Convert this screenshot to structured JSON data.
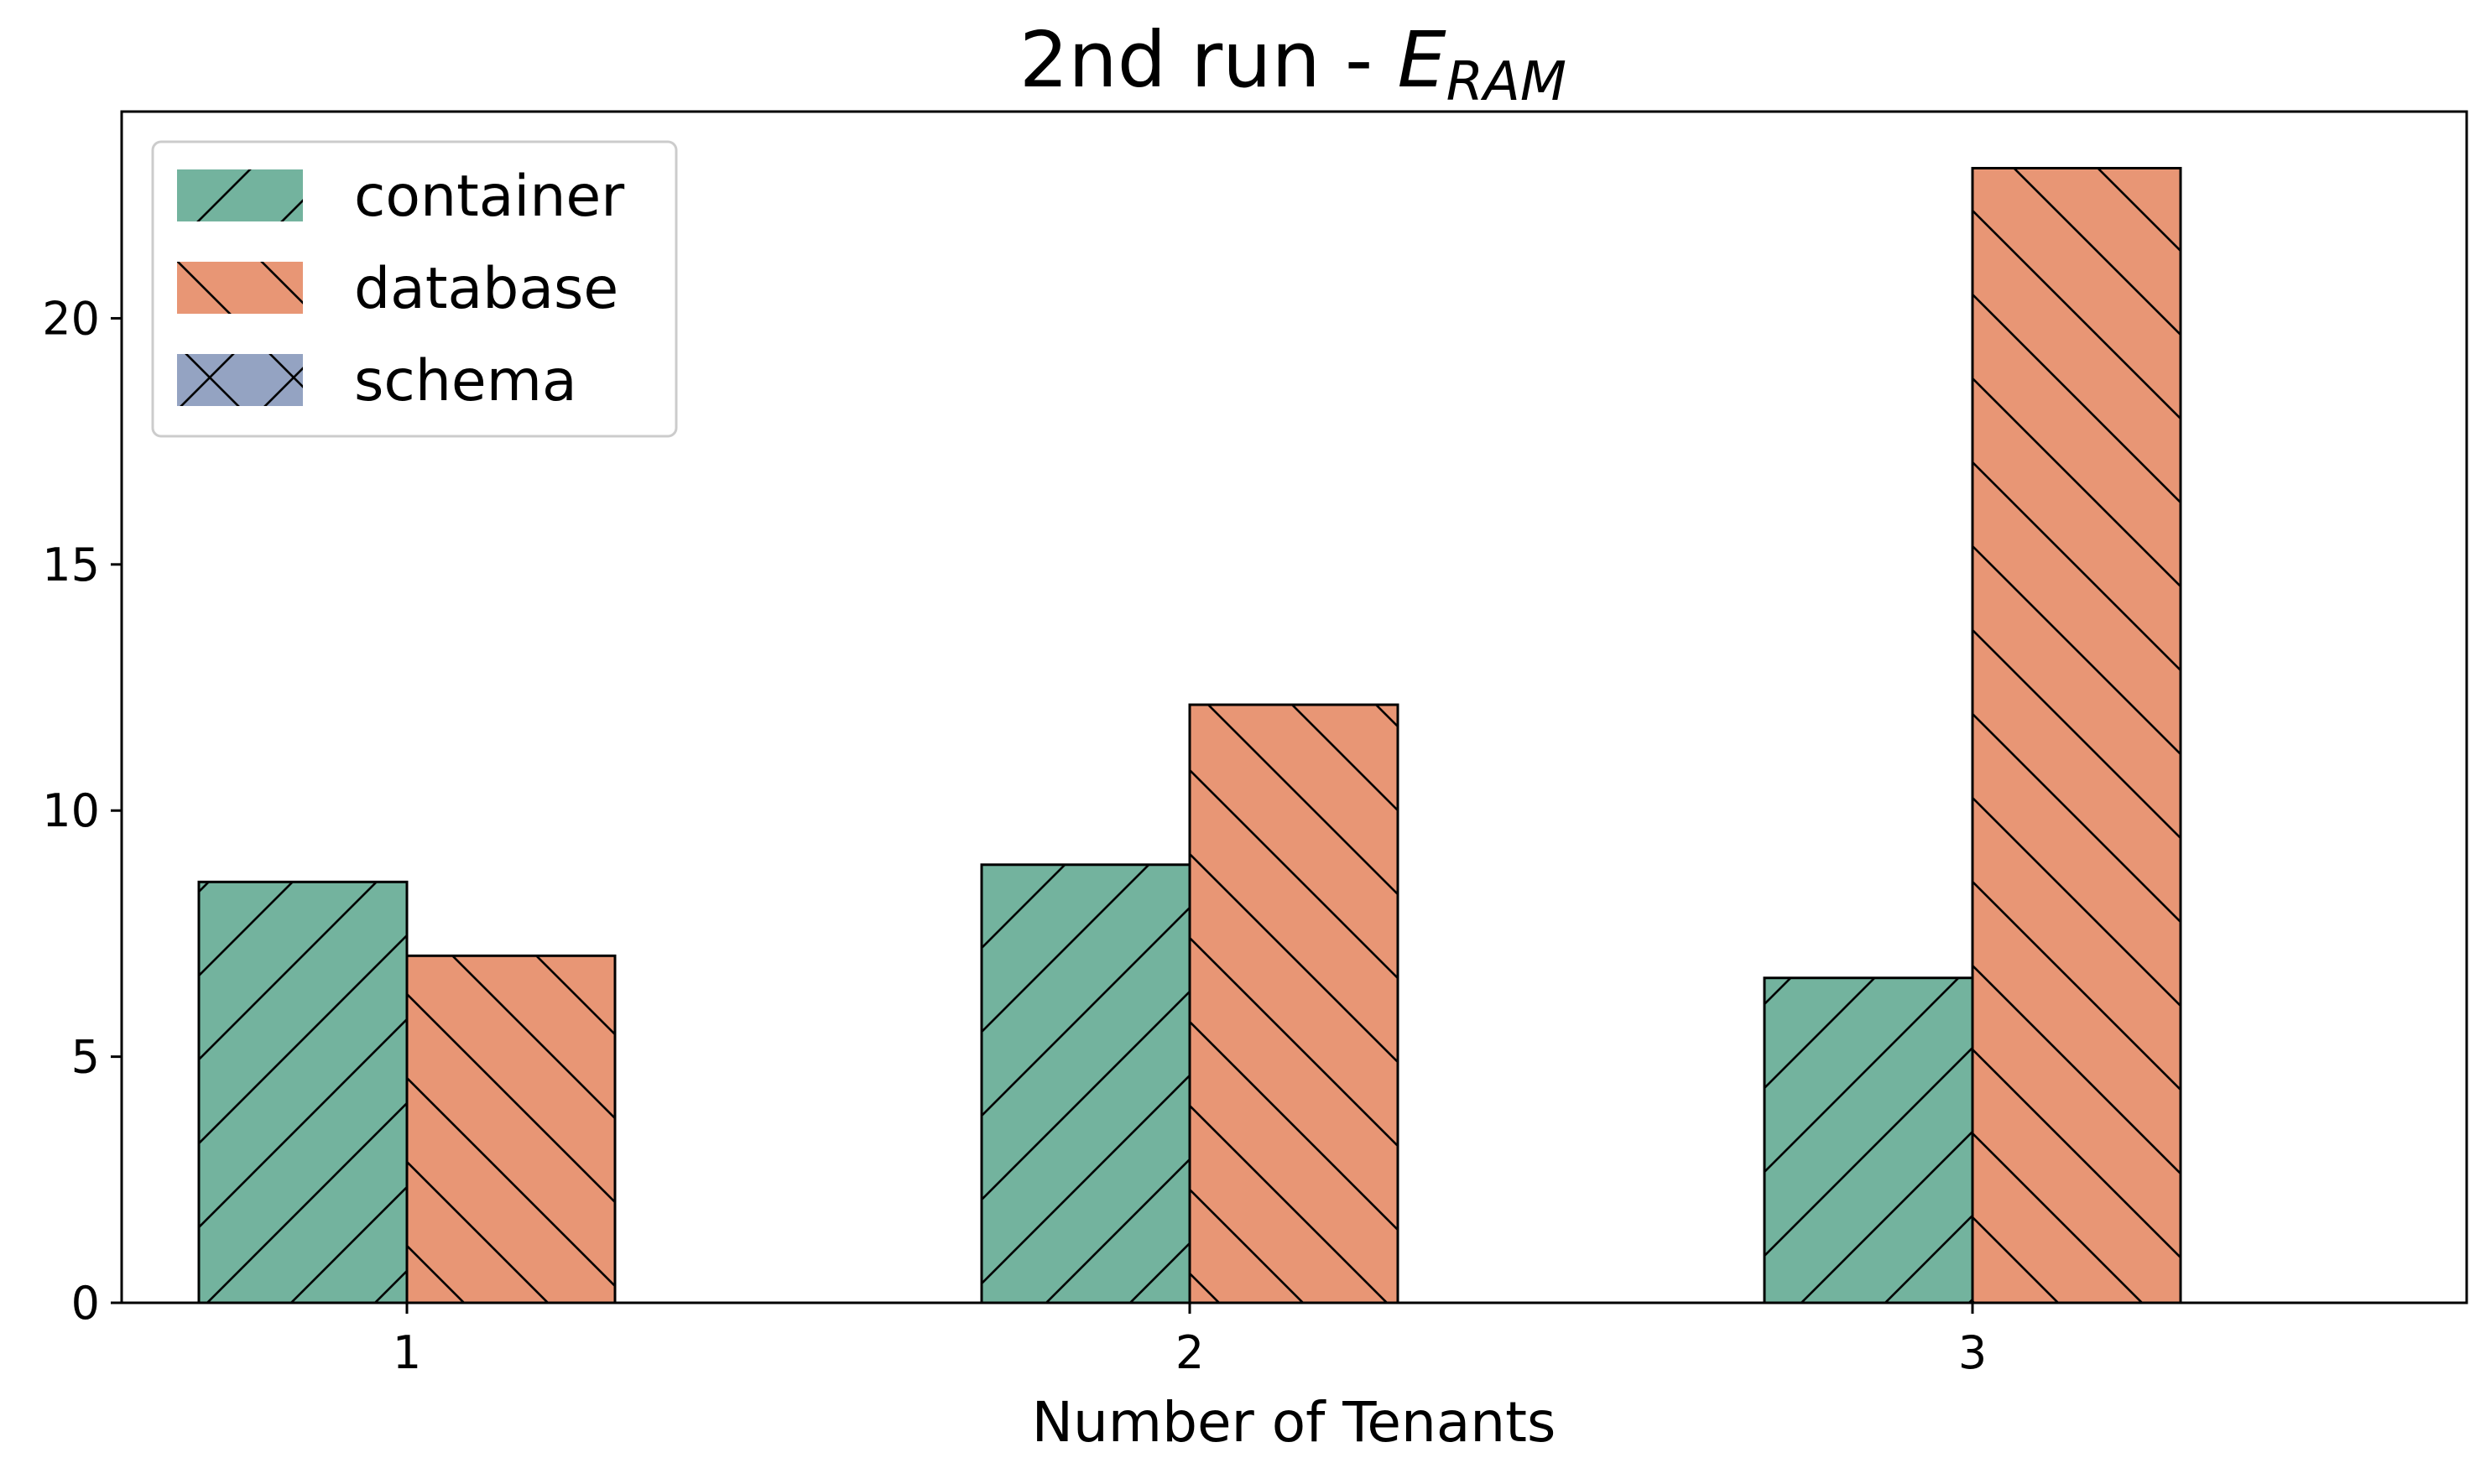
{
  "chart_data": {
    "type": "bar",
    "title": "2nd run - ",
    "title_math": {
      "base": "E",
      "subscript": "RAM"
    },
    "xlabel": "Number of Tenants",
    "ylabel": "",
    "categories": [
      "1",
      "2",
      "3"
    ],
    "ylim": [
      0,
      24.2
    ],
    "yticks": [
      0,
      5,
      10,
      15,
      20
    ],
    "grid": false,
    "legend_position": "top-left",
    "series": [
      {
        "name": "container",
        "values": [
          8.55,
          8.9,
          6.6
        ],
        "color": "#73b39e",
        "hatch": "/"
      },
      {
        "name": "database",
        "values": [
          7.05,
          12.15,
          23.05
        ],
        "color": "#e89675",
        "hatch": "\\"
      },
      {
        "name": "schema",
        "values": [
          null,
          null,
          null
        ],
        "color": "#94a3c2",
        "hatch": "x"
      }
    ]
  }
}
